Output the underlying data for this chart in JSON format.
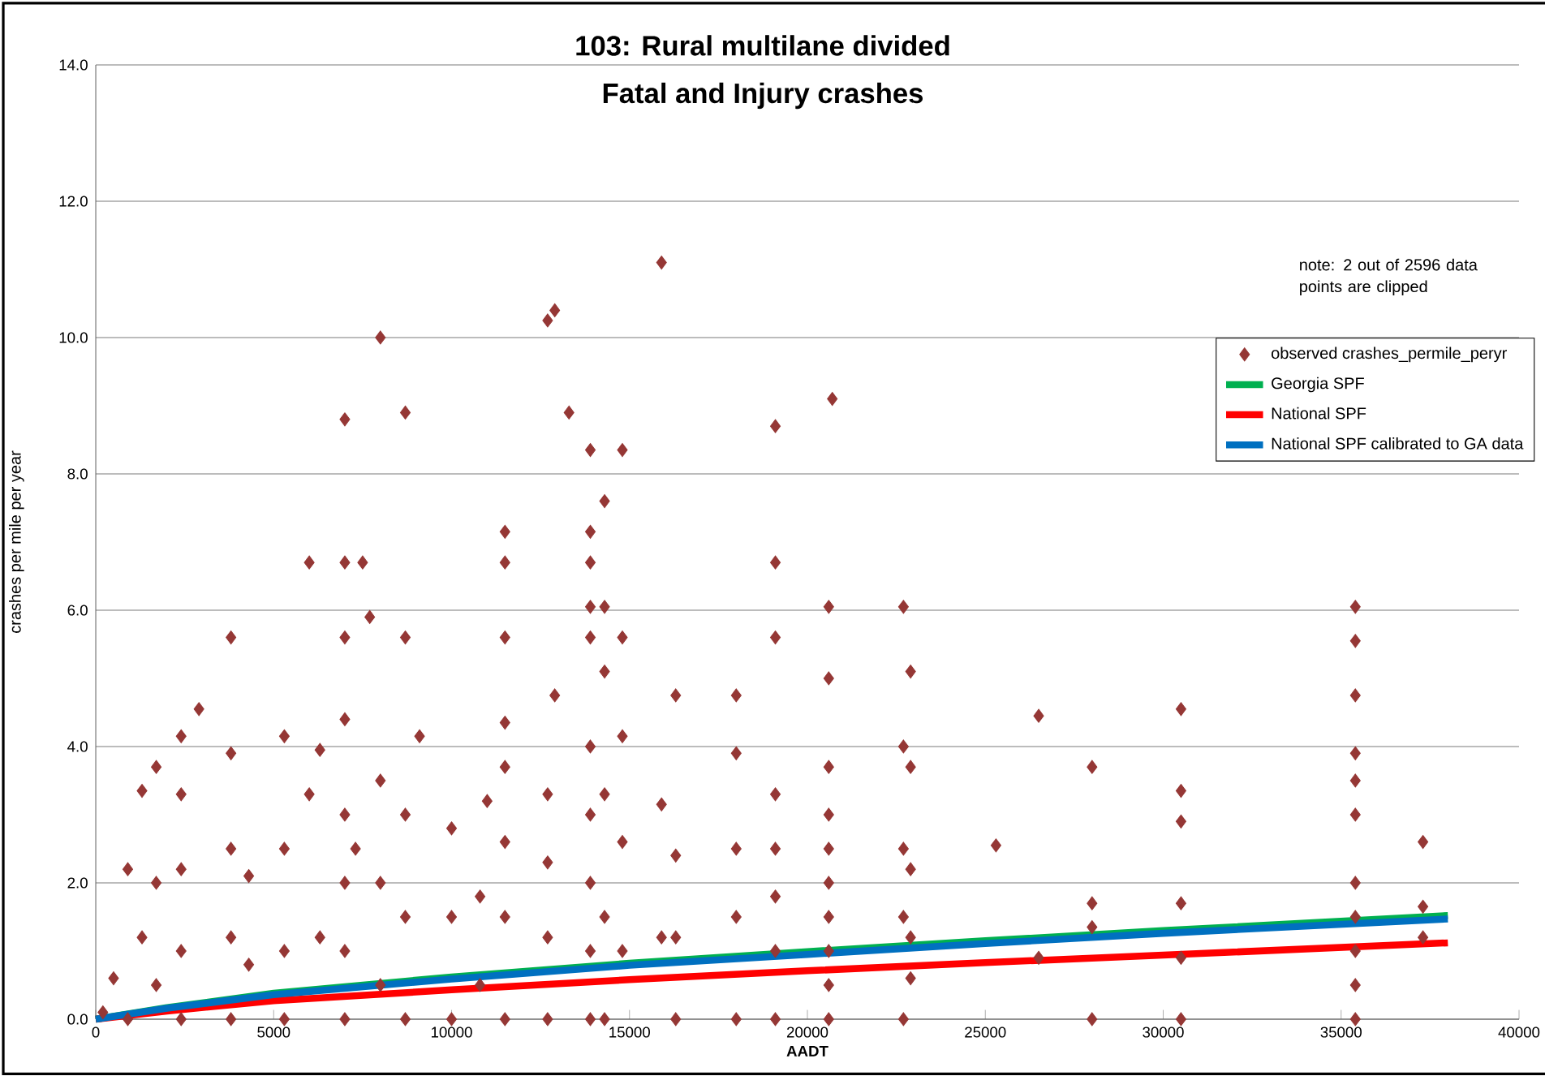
{
  "chart_data": {
    "type": "scatter",
    "title": "103: Rural multilane divided",
    "subtitle": "Fatal and Injury crashes",
    "xlabel": "AADT",
    "ylabel": "crashes per mile per year",
    "annotations": [
      "note: 2 out of 2596 data points are clipped"
    ],
    "xlim": [
      0,
      40000
    ],
    "ylim": [
      0,
      14
    ],
    "xticks": [
      0,
      5000,
      10000,
      15000,
      20000,
      25000,
      30000,
      35000,
      40000
    ],
    "yticks": [
      {
        "value": 0,
        "label": "0.0"
      },
      {
        "value": 2,
        "label": "2.0"
      },
      {
        "value": 4,
        "label": "4.0"
      },
      {
        "value": 6,
        "label": "6.0"
      },
      {
        "value": 8,
        "label": "8.0"
      },
      {
        "value": 10,
        "label": "10.0"
      },
      {
        "value": 12,
        "label": "12.0"
      },
      {
        "value": 14,
        "label": "14.0"
      }
    ],
    "grid": "y",
    "legend": "right",
    "series": [
      {
        "name": "observed crashes_permile_peryr",
        "color": "#953735",
        "marker": "diamond",
        "x": [
          8000,
          12700,
          12900,
          15900,
          7000,
          8700,
          13300,
          19100,
          20700,
          13900,
          14800,
          14300,
          11500,
          13900,
          6000,
          7000,
          7500,
          11500,
          13900,
          19100,
          7700,
          3800,
          7000,
          8700,
          11500,
          13900,
          14800,
          19100,
          20600,
          22700,
          35400,
          35400,
          14300,
          13900,
          2900,
          12900,
          16300,
          18000,
          20600,
          22900,
          26500,
          30500,
          35400,
          28000,
          30500,
          30500,
          25300,
          37300,
          35400,
          35400,
          35400,
          35400,
          35400,
          35400,
          35400,
          35400,
          37300,
          37300,
          30500,
          30500,
          30500,
          28000,
          28000,
          28000,
          26500,
          22700,
          22900,
          22700,
          22900,
          22700,
          22900,
          22900,
          22700,
          20600,
          20600,
          20600,
          20600,
          20600,
          20600,
          20600,
          20600,
          19100,
          19100,
          19100,
          19100,
          19100,
          18000,
          18000,
          18000,
          18000,
          16300,
          16300,
          16300,
          15900,
          15900,
          14800,
          14800,
          14800,
          14300,
          14300,
          14300,
          14300,
          13900,
          13900,
          13900,
          13900,
          13900,
          12700,
          12700,
          12700,
          12700,
          11500,
          11500,
          11500,
          11500,
          11500,
          11000,
          10800,
          10800,
          10000,
          10000,
          10000,
          9100,
          8700,
          8700,
          8700,
          8000,
          8000,
          8000,
          7300,
          7000,
          7000,
          7000,
          7000,
          7000,
          6300,
          6300,
          6000,
          5300,
          5300,
          5300,
          5300,
          4300,
          4300,
          3800,
          3800,
          3800,
          3800,
          2400,
          2400,
          2400,
          2400,
          2400,
          1700,
          1700,
          1700,
          1300,
          1300,
          900,
          900,
          500,
          200
        ],
        "values": [
          10.0,
          10.25,
          10.4,
          11.1,
          8.8,
          8.9,
          8.9,
          8.7,
          9.1,
          8.35,
          8.35,
          7.6,
          7.15,
          7.15,
          6.7,
          6.7,
          6.7,
          6.7,
          6.7,
          6.7,
          5.9,
          5.6,
          5.6,
          5.6,
          5.6,
          5.6,
          5.6,
          5.6,
          6.05,
          6.05,
          6.05,
          5.55,
          6.05,
          6.05,
          4.55,
          4.75,
          4.75,
          4.75,
          5.0,
          5.1,
          4.45,
          4.55,
          4.75,
          3.7,
          3.35,
          2.9,
          2.55,
          2.6,
          3.9,
          3.5,
          3.0,
          2.0,
          1.5,
          1.0,
          0.5,
          0.0,
          1.65,
          1.2,
          1.7,
          0.9,
          0.0,
          1.7,
          1.35,
          0.0,
          0.9,
          4.0,
          3.7,
          2.5,
          2.2,
          1.5,
          1.2,
          0.6,
          0.0,
          3.7,
          3.0,
          2.5,
          2.0,
          1.5,
          1.0,
          0.5,
          0.0,
          3.3,
          2.5,
          1.8,
          1.0,
          0.0,
          3.9,
          2.5,
          1.5,
          0.0,
          2.4,
          1.2,
          0.0,
          3.15,
          1.2,
          4.15,
          2.6,
          1.0,
          5.1,
          3.3,
          1.5,
          0.0,
          4.0,
          3.0,
          2.0,
          1.0,
          0.0,
          3.3,
          2.3,
          1.2,
          0.0,
          4.35,
          3.7,
          2.6,
          1.5,
          0.0,
          3.2,
          1.8,
          0.5,
          2.8,
          1.5,
          0.0,
          4.15,
          3.0,
          1.5,
          0.0,
          3.5,
          2.0,
          0.5,
          2.5,
          4.4,
          3.0,
          2.0,
          1.0,
          0.0,
          3.95,
          1.2,
          3.3,
          4.15,
          2.5,
          1.0,
          0.0,
          2.1,
          0.8,
          3.9,
          2.5,
          1.2,
          0.0,
          4.15,
          3.3,
          2.2,
          1.0,
          0.0,
          3.7,
          2.0,
          0.5,
          3.35,
          1.2,
          2.2,
          0.0,
          0.6,
          0.1
        ]
      },
      {
        "name": "Georgia SPF",
        "color": "#00b050",
        "type": "line",
        "x": [
          0,
          2000,
          5000,
          10000,
          15000,
          20000,
          25000,
          30000,
          38000
        ],
        "values": [
          0.0,
          0.17,
          0.38,
          0.62,
          0.82,
          0.99,
          1.15,
          1.3,
          1.52
        ]
      },
      {
        "name": "National SPF",
        "color": "#ff0000",
        "type": "line",
        "x": [
          0,
          2000,
          5000,
          10000,
          15000,
          20000,
          25000,
          30000,
          38000
        ],
        "values": [
          0.0,
          0.12,
          0.27,
          0.43,
          0.58,
          0.71,
          0.83,
          0.94,
          1.12
        ]
      },
      {
        "name": "National SPF calibrated to GA data",
        "color": "#0070c0",
        "type": "line",
        "x": [
          0,
          2000,
          5000,
          10000,
          15000,
          20000,
          25000,
          30000,
          38000
        ],
        "values": [
          0.0,
          0.16,
          0.36,
          0.59,
          0.79,
          0.95,
          1.11,
          1.26,
          1.47
        ]
      }
    ]
  }
}
